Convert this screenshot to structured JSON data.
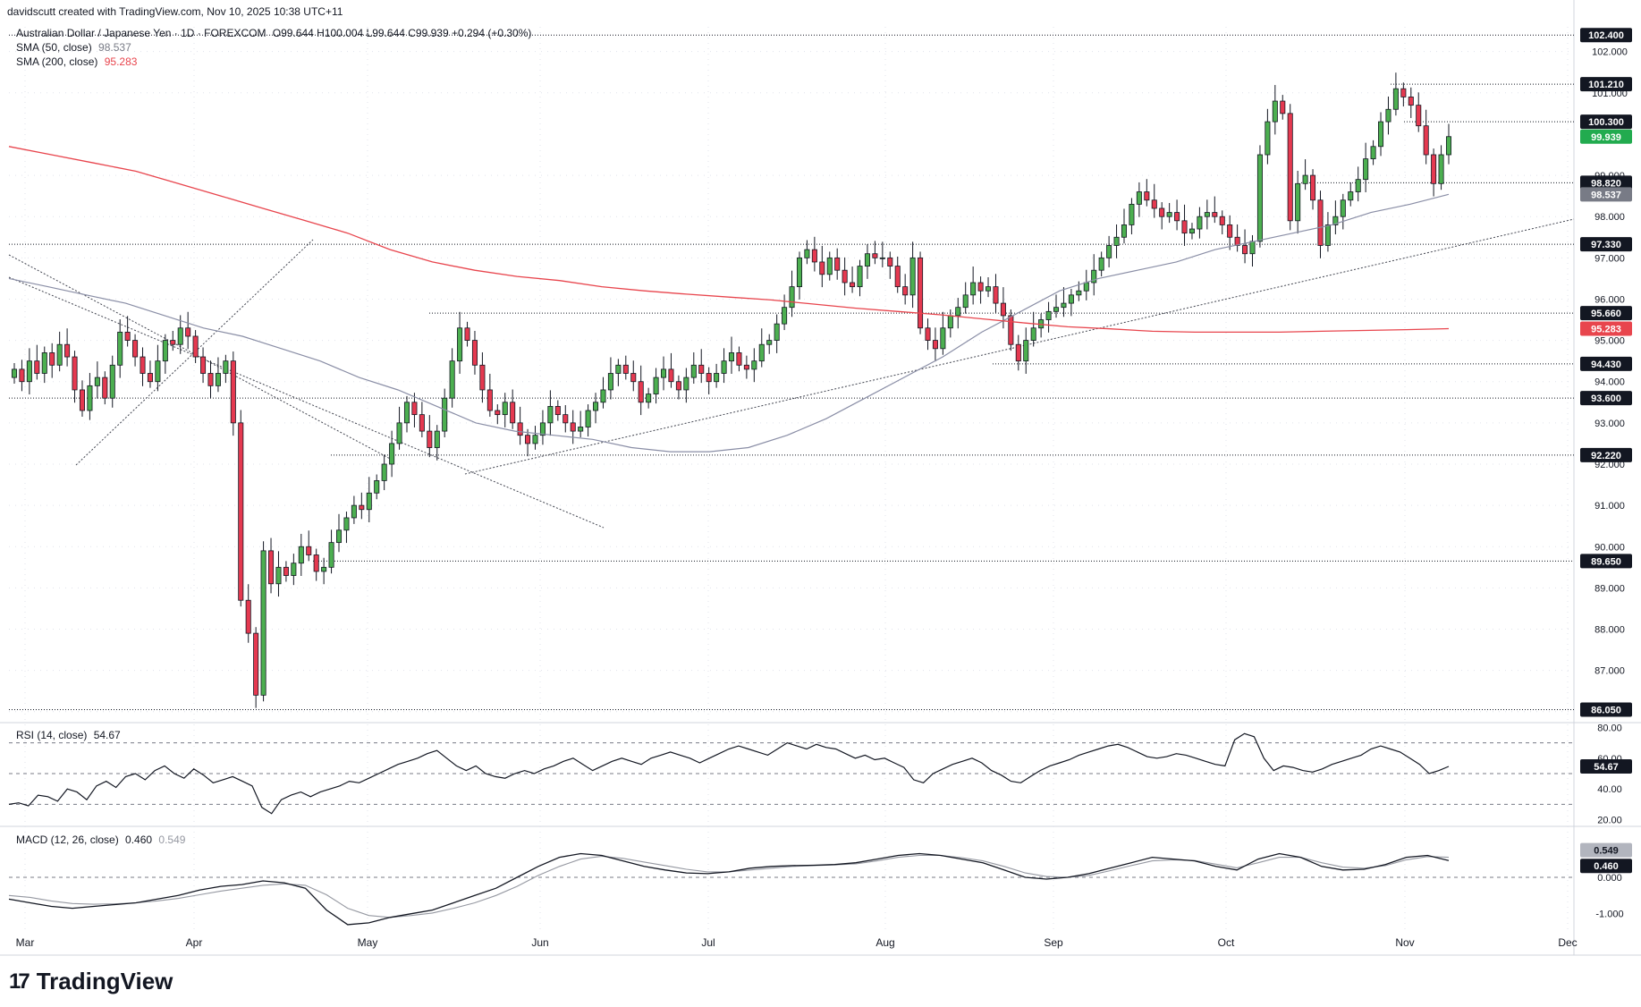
{
  "header": {
    "credit": "davidscutt created with TradingView.com, Nov 10, 2025 10:38 UTC+11"
  },
  "legend": {
    "symbol": "Australian Dollar / Japanese Yen · 1D · FOREXCOM",
    "ohlc": "O99.644 H100.004 L99.644 C99.939 +0.294 (+0.30%)",
    "sma50_label": "SMA (50, close)",
    "sma50_value": "98.537",
    "sma200_label": "SMA (200, close)",
    "sma200_value": "95.283",
    "rsi_label": "RSI (14, close)",
    "rsi_value": "54.67",
    "macd_label": "MACD (12, 26, close)",
    "macd_value": "0.460",
    "signal_value": "0.549"
  },
  "logo": {
    "text": "TradingView"
  },
  "colors": {
    "up": "#26a69a",
    "down": "#ef5350",
    "up_fill": "#4caf50",
    "down_fill": "#e53950",
    "sma50": "#8a8ea6",
    "sma200": "#e8454d",
    "line": "#131722"
  },
  "chart_data": [
    {
      "type": "candlestick",
      "title": "Australian Dollar / Japanese Yen · 1D · FOREXCOM",
      "x_ticks": [
        "Mar",
        "Apr",
        "May",
        "Jun",
        "Jul",
        "Aug",
        "Sep",
        "Oct",
        "Nov",
        "Dec"
      ],
      "y_ticks": [
        "86.000",
        "87.000",
        "88.000",
        "89.000",
        "90.000",
        "91.000",
        "92.000",
        "93.000",
        "94.000",
        "95.000",
        "96.000",
        "97.000",
        "98.000",
        "99.000",
        "101.000",
        "102.000"
      ],
      "ylim": [
        85.8,
        102.6
      ],
      "horizontal_levels": [
        102.4,
        101.21,
        100.3,
        98.82,
        97.33,
        95.66,
        94.43,
        93.6,
        92.22,
        89.65,
        86.05
      ],
      "price_labels": [
        {
          "text": "102.400",
          "value": 102.4,
          "color": "#131722"
        },
        {
          "text": "101.210",
          "value": 101.21,
          "color": "#131722"
        },
        {
          "text": "100.300",
          "value": 100.3,
          "color": "#131722"
        },
        {
          "text": "99.939",
          "value": 99.939,
          "color": "#22ab4f"
        },
        {
          "text": "98.820",
          "value": 98.82,
          "color": "#131722"
        },
        {
          "text": "98.537",
          "value": 98.537,
          "color": "#787b86"
        },
        {
          "text": "97.330",
          "value": 97.33,
          "color": "#131722"
        },
        {
          "text": "95.660",
          "value": 95.66,
          "color": "#131722"
        },
        {
          "text": "95.283",
          "value": 95.283,
          "color": "#e8454d"
        },
        {
          "text": "94.430",
          "value": 94.43,
          "color": "#131722"
        },
        {
          "text": "93.600",
          "value": 93.6,
          "color": "#131722"
        },
        {
          "text": "92.220",
          "value": 92.22,
          "color": "#131722"
        },
        {
          "text": "89.650",
          "value": 89.65,
          "color": "#131722"
        },
        {
          "text": "86.050",
          "value": 86.05,
          "color": "#131722"
        }
      ],
      "close_series": [
        94.3,
        94.0,
        94.5,
        94.2,
        94.7,
        94.4,
        94.9,
        94.6,
        93.8,
        93.3,
        93.9,
        94.1,
        93.6,
        94.4,
        95.2,
        95.0,
        94.6,
        94.2,
        94.0,
        94.5,
        95.0,
        94.9,
        95.3,
        95.1,
        94.6,
        94.2,
        93.9,
        94.2,
        94.5,
        93.0,
        88.7,
        87.9,
        86.4,
        89.9,
        89.1,
        89.5,
        89.3,
        89.6,
        90.0,
        89.8,
        89.4,
        89.5,
        90.1,
        90.4,
        90.7,
        91.0,
        90.9,
        91.3,
        91.6,
        92.0,
        92.5,
        93.0,
        93.5,
        93.2,
        92.8,
        92.4,
        92.8,
        93.6,
        94.5,
        95.3,
        95.0,
        94.4,
        93.8,
        93.3,
        93.2,
        93.5,
        93.0,
        92.7,
        92.5,
        92.7,
        93.0,
        93.4,
        93.2,
        93.0,
        92.8,
        92.9,
        93.3,
        93.5,
        93.8,
        94.2,
        94.4,
        94.2,
        94.0,
        93.5,
        93.7,
        94.1,
        94.3,
        94.0,
        93.8,
        94.1,
        94.4,
        94.2,
        94.0,
        94.2,
        94.5,
        94.7,
        94.4,
        94.3,
        94.5,
        94.9,
        95.0,
        95.4,
        95.8,
        96.3,
        97.0,
        97.2,
        96.9,
        96.6,
        97.0,
        96.7,
        96.4,
        96.3,
        96.8,
        97.1,
        97.0,
        97.0,
        96.8,
        96.3,
        96.1,
        97.0,
        95.3,
        95.0,
        94.8,
        95.3,
        95.6,
        95.8,
        96.1,
        96.4,
        96.2,
        96.3,
        95.9,
        95.6,
        94.9,
        94.5,
        95.0,
        95.3,
        95.5,
        95.7,
        95.8,
        95.9,
        96.1,
        96.2,
        96.4,
        96.7,
        97.0,
        97.3,
        97.5,
        97.8,
        98.3,
        98.6,
        98.4,
        98.2,
        98.0,
        98.1,
        97.9,
        97.6,
        97.7,
        98.0,
        98.1,
        98.0,
        97.8,
        97.5,
        97.3,
        97.1,
        97.4,
        99.5,
        100.3,
        100.8,
        100.5,
        97.9,
        98.8,
        99.0,
        98.4,
        97.3,
        97.8,
        98.0,
        98.4,
        98.6,
        98.9,
        99.4,
        99.7,
        100.3,
        100.6,
        101.1,
        100.9,
        100.7,
        100.2,
        99.5,
        98.8,
        99.5,
        99.939
      ],
      "sma50_series": [
        96.5,
        96.3,
        96.1,
        95.9,
        95.6,
        95.3,
        95.1,
        94.8,
        94.5,
        94.1,
        93.8,
        93.4,
        93.0,
        92.8,
        92.7,
        92.6,
        92.4,
        92.3,
        92.3,
        92.4,
        92.7,
        93.1,
        93.6,
        94.1,
        94.6,
        95.2,
        95.7,
        96.2,
        96.5,
        96.7,
        96.9,
        97.2,
        97.4,
        97.6,
        97.8,
        98.1,
        98.3,
        98.54
      ],
      "sma200_series": [
        99.7,
        99.5,
        99.3,
        99.1,
        98.8,
        98.5,
        98.2,
        97.9,
        97.6,
        97.2,
        96.9,
        96.7,
        96.55,
        96.45,
        96.3,
        96.2,
        96.12,
        96.05,
        95.98,
        95.88,
        95.78,
        95.7,
        95.62,
        95.52,
        95.42,
        95.33,
        95.28,
        95.22,
        95.2,
        95.2,
        95.2,
        95.22,
        95.24,
        95.26,
        95.283
      ]
    },
    {
      "type": "line",
      "title": "RSI (14, close)",
      "y_ticks": [
        "80.00",
        "60.00",
        "40.00",
        "20.00"
      ],
      "ylim": [
        18,
        82
      ],
      "bands": [
        70,
        50,
        30
      ],
      "values": [
        30,
        31,
        29,
        36,
        35,
        32,
        40,
        38,
        33,
        42,
        45,
        41,
        48,
        50,
        46,
        52,
        55,
        50,
        47,
        53,
        49,
        44,
        46,
        48,
        45,
        42,
        28,
        24,
        33,
        36,
        38,
        35,
        38,
        40,
        42,
        45,
        44,
        47,
        50,
        53,
        56,
        58,
        60,
        63,
        65,
        60,
        55,
        52,
        55,
        50,
        48,
        47,
        50,
        52,
        50,
        53,
        55,
        58,
        60,
        56,
        52,
        55,
        58,
        60,
        58,
        56,
        60,
        62,
        64,
        62,
        60,
        57,
        60,
        63,
        66,
        68,
        66,
        64,
        62,
        66,
        70,
        68,
        66,
        69,
        67,
        66,
        63,
        60,
        62,
        59,
        60,
        57,
        54,
        46,
        44,
        50,
        53,
        56,
        58,
        60,
        57,
        52,
        49,
        45,
        44,
        48,
        52,
        55,
        57,
        59,
        62,
        64,
        66,
        68,
        69,
        67,
        64,
        61,
        60,
        61,
        63,
        62,
        60,
        58,
        56,
        55,
        72,
        76,
        74,
        60,
        52,
        55,
        54,
        52,
        51,
        53,
        56,
        58,
        60,
        62,
        66,
        68,
        66,
        64,
        60,
        56,
        50,
        52,
        54.67
      ],
      "last_label": "54.67"
    },
    {
      "type": "line",
      "title": "MACD (12, 26, close)",
      "y_ticks": [
        "0.000",
        "-1.000"
      ],
      "ylim": [
        -1.45,
        1.35
      ],
      "series": [
        {
          "name": "MACD",
          "values": [
            -0.6,
            -0.7,
            -0.8,
            -0.85,
            -0.8,
            -0.75,
            -0.7,
            -0.6,
            -0.5,
            -0.35,
            -0.25,
            -0.2,
            -0.1,
            -0.15,
            -0.3,
            -0.9,
            -1.3,
            -1.25,
            -1.1,
            -1.0,
            -0.9,
            -0.7,
            -0.5,
            -0.3,
            0.0,
            0.3,
            0.55,
            0.65,
            0.6,
            0.45,
            0.3,
            0.2,
            0.12,
            0.1,
            0.15,
            0.25,
            0.3,
            0.32,
            0.33,
            0.35,
            0.4,
            0.5,
            0.6,
            0.65,
            0.6,
            0.5,
            0.4,
            0.2,
            0.0,
            -0.05,
            0.0,
            0.1,
            0.25,
            0.4,
            0.55,
            0.5,
            0.45,
            0.3,
            0.2,
            0.5,
            0.65,
            0.55,
            0.3,
            0.2,
            0.22,
            0.35,
            0.55,
            0.6,
            0.46
          ]
        },
        {
          "name": "Signal",
          "values": [
            -0.5,
            -0.55,
            -0.65,
            -0.72,
            -0.74,
            -0.73,
            -0.7,
            -0.65,
            -0.58,
            -0.48,
            -0.38,
            -0.3,
            -0.22,
            -0.18,
            -0.22,
            -0.48,
            -0.85,
            -1.05,
            -1.1,
            -1.05,
            -0.98,
            -0.85,
            -0.7,
            -0.5,
            -0.25,
            0.05,
            0.3,
            0.5,
            0.58,
            0.52,
            0.42,
            0.32,
            0.22,
            0.15,
            0.15,
            0.2,
            0.25,
            0.3,
            0.32,
            0.34,
            0.37,
            0.45,
            0.55,
            0.6,
            0.6,
            0.54,
            0.45,
            0.3,
            0.12,
            0.02,
            0.0,
            0.05,
            0.18,
            0.32,
            0.45,
            0.48,
            0.46,
            0.36,
            0.26,
            0.4,
            0.55,
            0.55,
            0.4,
            0.28,
            0.25,
            0.32,
            0.48,
            0.57,
            0.549
          ]
        }
      ],
      "last_labels": [
        "0.549",
        "0.460"
      ]
    }
  ]
}
